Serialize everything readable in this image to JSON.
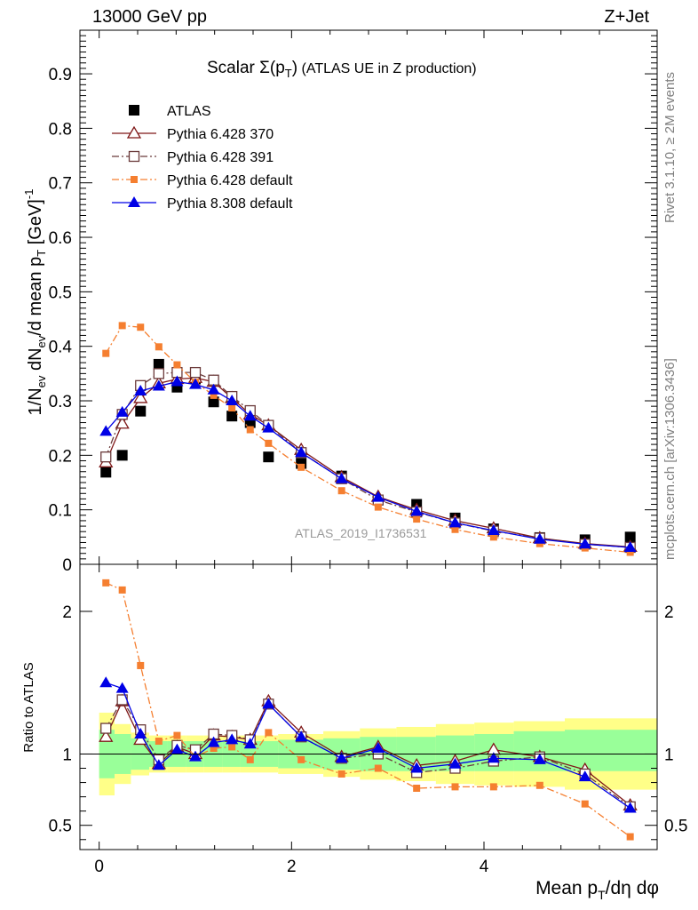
{
  "header": {
    "left": "13000 GeV pp",
    "right": "Z+Jet",
    "side_top": "Rivet 3.1.10, ≥ 2M events",
    "side_bottom": "mcplots.cern.ch [arXiv:1306.3436]"
  },
  "chart_data": [
    {
      "type": "line",
      "panel": "main",
      "title": "Scalar Σ(pT) (ATLAS UE in Z production)",
      "title_parts": {
        "prefix": "Scalar ",
        "sigma": "Σ(p",
        "sub": "T",
        "close": ")",
        "suffix": " (ATLAS UE in Z production)"
      },
      "ylabel": "1/Nev dNev/d mean pT [GeV]^-1",
      "ylabel_parts": {
        "a": "1/N",
        "b": "ev",
        "c": " dN",
        "d": "ev",
        "e": "/d mean p",
        "f": "T",
        "g": " [GeV]",
        "h": "-1"
      },
      "watermark": "ATLAS_2019_I1736531",
      "xlim": [
        -0.2,
        5.8
      ],
      "ylim": [
        0,
        0.98
      ],
      "yticks": [
        "0",
        "0.1",
        "0.2",
        "0.3",
        "0.4",
        "0.5",
        "0.6",
        "0.7",
        "0.8",
        "0.9"
      ],
      "legend_position": "top-left",
      "x": [
        0.07,
        0.24,
        0.43,
        0.62,
        0.81,
        1.0,
        1.19,
        1.38,
        1.57,
        1.76,
        2.1,
        2.52,
        2.9,
        3.3,
        3.7,
        4.1,
        4.58,
        5.05,
        5.52
      ],
      "series": [
        {
          "name": "ATLAS",
          "marker": "square-filled",
          "line": "none",
          "color": "#000000",
          "values": [
            0.169,
            0.2,
            0.281,
            0.367,
            0.325,
            0.34,
            0.298,
            0.272,
            0.26,
            0.197,
            0.185,
            0.162,
            0.118,
            0.11,
            0.085,
            0.065,
            0.049,
            0.045,
            0.05
          ]
        },
        {
          "name": "Pythia 6.428 370",
          "marker": "triangle-open",
          "line": "solid",
          "color": "#7f1818",
          "values": [
            0.187,
            0.258,
            0.305,
            0.332,
            0.34,
            0.342,
            0.335,
            0.305,
            0.275,
            0.255,
            0.21,
            0.16,
            0.124,
            0.1,
            0.08,
            0.066,
            0.048,
            0.038,
            0.032
          ]
        },
        {
          "name": "Pythia 6.428 391",
          "marker": "square-open",
          "line": "dash-dot",
          "color": "#6b3b3b",
          "values": [
            0.197,
            0.275,
            0.328,
            0.35,
            0.352,
            0.352,
            0.338,
            0.308,
            0.282,
            0.255,
            0.205,
            0.157,
            0.118,
            0.096,
            0.076,
            0.061,
            0.048,
            0.037,
            0.031
          ]
        },
        {
          "name": "Pythia 6.428 default",
          "marker": "square-small-filled",
          "line": "dash-dot",
          "color": "#f57f30",
          "values": [
            0.387,
            0.438,
            0.435,
            0.399,
            0.366,
            0.334,
            0.31,
            0.287,
            0.247,
            0.222,
            0.178,
            0.135,
            0.105,
            0.083,
            0.064,
            0.05,
            0.038,
            0.03,
            0.022
          ]
        },
        {
          "name": "Pythia 8.308 default",
          "marker": "triangle-filled",
          "line": "solid",
          "color": "#0000e6",
          "values": [
            0.244,
            0.279,
            0.318,
            0.327,
            0.335,
            0.33,
            0.32,
            0.3,
            0.272,
            0.25,
            0.205,
            0.157,
            0.123,
            0.097,
            0.076,
            0.062,
            0.046,
            0.037,
            0.031
          ]
        }
      ]
    },
    {
      "type": "line",
      "panel": "ratio",
      "ylabel": "Ratio to ATLAS",
      "xlabel": "Mean pT/dη dφ",
      "xlabel_parts": {
        "a": "Mean p",
        "b": "T",
        "c": "/dη dφ"
      },
      "xlim": [
        -0.2,
        5.8
      ],
      "ylim": [
        0.33,
        2.33
      ],
      "yticks": [
        "0.5",
        "1",
        "2"
      ],
      "xticks": [
        "0",
        "2",
        "4"
      ],
      "band_edges": [
        0,
        0.16,
        0.33,
        0.52,
        0.71,
        0.9,
        1.09,
        1.28,
        1.47,
        1.66,
        1.86,
        2.33,
        2.71,
        3.09,
        3.5,
        3.9,
        4.31,
        4.84,
        5.26,
        5.8
      ],
      "bands": {
        "inner": {
          "color": "#99ff99",
          "low": [
            0.83,
            0.86,
            0.89,
            0.91,
            0.91,
            0.91,
            0.91,
            0.91,
            0.91,
            0.91,
            0.9,
            0.89,
            0.88,
            0.88,
            0.88,
            0.88,
            0.88,
            0.88,
            0.88
          ],
          "high": [
            1.17,
            1.14,
            1.11,
            1.09,
            1.09,
            1.09,
            1.09,
            1.09,
            1.09,
            1.09,
            1.1,
            1.11,
            1.12,
            1.12,
            1.13,
            1.14,
            1.16,
            1.17,
            1.17
          ]
        },
        "outer": {
          "color": "#ffff88",
          "low": [
            0.71,
            0.79,
            0.85,
            0.87,
            0.87,
            0.87,
            0.87,
            0.87,
            0.87,
            0.87,
            0.86,
            0.84,
            0.82,
            0.81,
            0.79,
            0.78,
            0.77,
            0.75,
            0.75
          ],
          "high": [
            1.29,
            1.21,
            1.15,
            1.13,
            1.13,
            1.13,
            1.13,
            1.13,
            1.13,
            1.13,
            1.14,
            1.16,
            1.18,
            1.19,
            1.21,
            1.22,
            1.23,
            1.25,
            1.25
          ]
        }
      },
      "x": [
        0.07,
        0.24,
        0.43,
        0.62,
        0.81,
        1.0,
        1.19,
        1.38,
        1.57,
        1.76,
        2.1,
        2.52,
        2.9,
        3.3,
        3.7,
        4.1,
        4.58,
        5.05,
        5.52
      ],
      "series": [
        {
          "name": "Pythia 6.428 370",
          "marker": "triangle-open",
          "line": "solid",
          "color": "#7f1818",
          "values": [
            1.12,
            1.37,
            1.1,
            0.93,
            1.05,
            1.0,
            1.13,
            1.12,
            1.1,
            1.37,
            1.15,
            0.98,
            1.05,
            0.92,
            0.95,
            1.03,
            0.98,
            0.89,
            0.64
          ]
        },
        {
          "name": "Pythia 6.428 391",
          "marker": "square-open",
          "line": "dash-dot",
          "color": "#6b3b3b",
          "values": [
            1.18,
            1.38,
            1.17,
            0.96,
            1.06,
            1.03,
            1.14,
            1.13,
            1.1,
            1.35,
            1.12,
            0.97,
            1.0,
            0.87,
            0.9,
            0.95,
            0.98,
            0.86,
            0.63
          ]
        },
        {
          "name": "Pythia 6.428 default",
          "marker": "square-small-filled",
          "line": "dash-dot",
          "color": "#f57f30",
          "values": [
            2.2,
            2.15,
            1.62,
            1.09,
            1.13,
            0.98,
            1.04,
            1.05,
            0.96,
            1.15,
            0.96,
            0.86,
            0.9,
            0.76,
            0.77,
            0.77,
            0.78,
            0.65,
            0.42
          ]
        },
        {
          "name": "Pythia 8.308 default",
          "marker": "triangle-filled",
          "line": "solid",
          "color": "#0000e6",
          "values": [
            1.5,
            1.46,
            1.14,
            0.92,
            1.03,
            0.98,
            1.08,
            1.1,
            1.07,
            1.35,
            1.12,
            0.97,
            1.04,
            0.9,
            0.93,
            0.97,
            0.96,
            0.84,
            0.62
          ]
        }
      ]
    }
  ]
}
